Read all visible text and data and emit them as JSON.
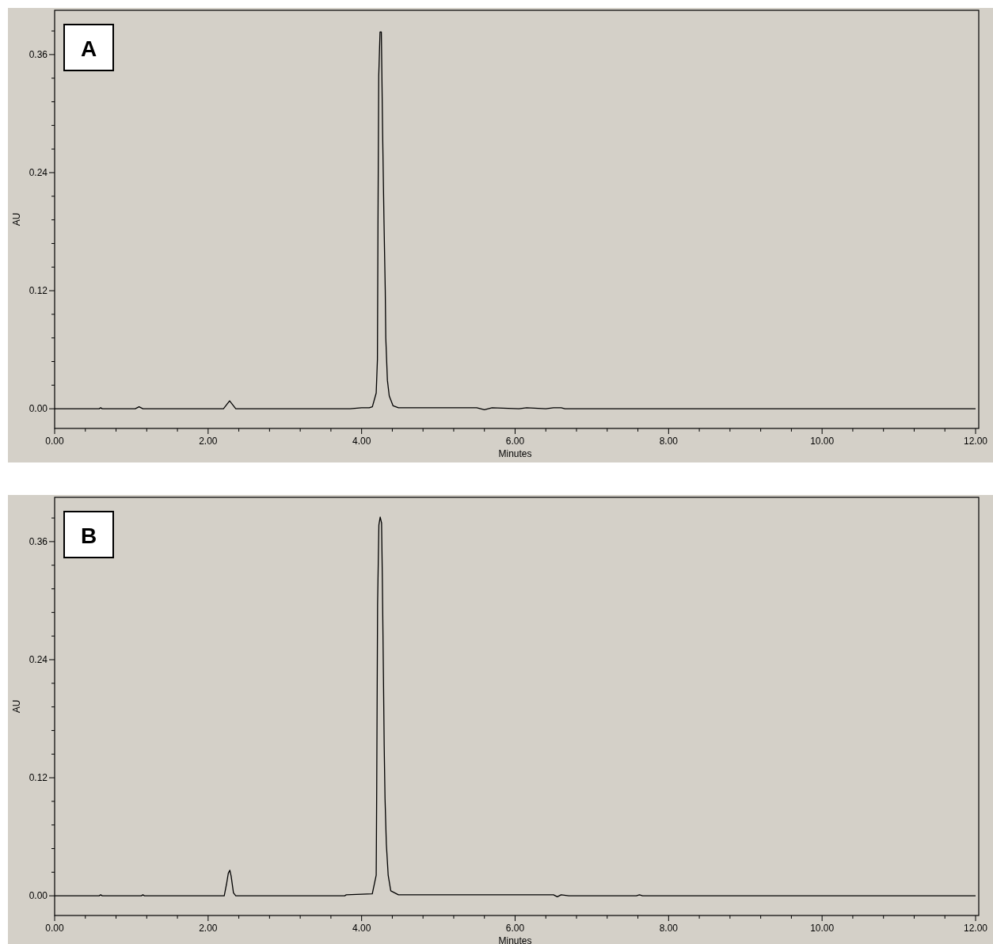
{
  "chart_data": [
    {
      "type": "line",
      "xlabel": "Minutes",
      "ylabel": "AU",
      "annotations": [
        "A"
      ],
      "xlim": [
        0,
        12
      ],
      "xticks": [
        {
          "value": 0,
          "label": "0.00"
        },
        {
          "value": 0.4,
          "label": null
        },
        {
          "value": 0.8,
          "label": null
        },
        {
          "value": 1.2,
          "label": null
        },
        {
          "value": 1.6,
          "label": null
        },
        {
          "value": 2,
          "label": "2.00"
        },
        {
          "value": 2.4,
          "label": null
        },
        {
          "value": 2.8,
          "label": null
        },
        {
          "value": 3.2,
          "label": null
        },
        {
          "value": 3.6,
          "label": null
        },
        {
          "value": 4,
          "label": "4.00"
        },
        {
          "value": 4.4,
          "label": null
        },
        {
          "value": 4.8,
          "label": null
        },
        {
          "value": 5.2,
          "label": null
        },
        {
          "value": 5.6,
          "label": null
        },
        {
          "value": 6,
          "label": "6.00"
        },
        {
          "value": 6.4,
          "label": null
        },
        {
          "value": 6.8,
          "label": null
        },
        {
          "value": 7.2,
          "label": null
        },
        {
          "value": 7.6,
          "label": null
        },
        {
          "value": 8,
          "label": "8.00"
        },
        {
          "value": 8.4,
          "label": null
        },
        {
          "value": 8.8,
          "label": null
        },
        {
          "value": 9.2,
          "label": null
        },
        {
          "value": 9.6,
          "label": null
        },
        {
          "value": 10,
          "label": "10.00"
        },
        {
          "value": 10.4,
          "label": null
        },
        {
          "value": 10.8,
          "label": null
        },
        {
          "value": 11.2,
          "label": null
        },
        {
          "value": 11.6,
          "label": null
        },
        {
          "value": 12,
          "label": "12.00"
        }
      ],
      "ylim": [
        -0.02,
        0.405
      ],
      "yticks": [
        {
          "value": 0,
          "label": "0.00"
        },
        {
          "value": 0.024,
          "label": null
        },
        {
          "value": 0.048,
          "label": null
        },
        {
          "value": 0.072,
          "label": null
        },
        {
          "value": 0.096,
          "label": null
        },
        {
          "value": 0.12,
          "label": "0.12"
        },
        {
          "value": 0.144,
          "label": null
        },
        {
          "value": 0.168,
          "label": null
        },
        {
          "value": 0.192,
          "label": null
        },
        {
          "value": 0.216,
          "label": null
        },
        {
          "value": 0.24,
          "label": "0.24"
        },
        {
          "value": 0.264,
          "label": null
        },
        {
          "value": 0.288,
          "label": null
        },
        {
          "value": 0.312,
          "label": null
        },
        {
          "value": 0.336,
          "label": null
        },
        {
          "value": 0.36,
          "label": "0.36"
        },
        {
          "value": 0.384,
          "label": null
        }
      ],
      "series": [
        {
          "color": "#000000",
          "x": [
            0,
            0.58,
            0.6,
            0.62,
            1.05,
            1.1,
            1.15,
            2.2,
            2.26,
            2.28,
            2.3,
            2.36,
            3.85,
            4.0,
            4.1,
            4.14,
            4.19,
            4.206,
            4.213,
            4.223,
            4.24,
            4.257,
            4.274,
            4.291,
            4.308,
            4.315,
            4.336,
            4.36,
            4.41,
            4.48,
            5.5,
            5.6,
            5.7,
            6.05,
            6.15,
            6.4,
            6.5,
            6.6,
            6.65,
            12
          ],
          "values": [
            0,
            0,
            0.001,
            0,
            0,
            0.002,
            0,
            0,
            0.006,
            0.008,
            0.006,
            0,
            0,
            0.001,
            0.001,
            0.002,
            0.016,
            0.05,
            0.185,
            0.338,
            0.383,
            0.383,
            0.279,
            0.193,
            0.12,
            0.072,
            0.029,
            0.013,
            0.003,
            0.001,
            0.001,
            -0.001,
            0.001,
            0,
            0.001,
            0,
            0.001,
            0.001,
            0,
            0
          ]
        }
      ]
    },
    {
      "type": "line",
      "xlabel": "Minutes",
      "ylabel": "AU",
      "annotations": [
        "B"
      ],
      "xlim": [
        0,
        12
      ],
      "xticks": [
        {
          "value": 0,
          "label": "0.00"
        },
        {
          "value": 0.4,
          "label": null
        },
        {
          "value": 0.8,
          "label": null
        },
        {
          "value": 1.2,
          "label": null
        },
        {
          "value": 1.6,
          "label": null
        },
        {
          "value": 2,
          "label": "2.00"
        },
        {
          "value": 2.4,
          "label": null
        },
        {
          "value": 2.8,
          "label": null
        },
        {
          "value": 3.2,
          "label": null
        },
        {
          "value": 3.6,
          "label": null
        },
        {
          "value": 4,
          "label": "4.00"
        },
        {
          "value": 4.4,
          "label": null
        },
        {
          "value": 4.8,
          "label": null
        },
        {
          "value": 5.2,
          "label": null
        },
        {
          "value": 5.6,
          "label": null
        },
        {
          "value": 6,
          "label": "6.00"
        },
        {
          "value": 6.4,
          "label": null
        },
        {
          "value": 6.8,
          "label": null
        },
        {
          "value": 7.2,
          "label": null
        },
        {
          "value": 7.6,
          "label": null
        },
        {
          "value": 8,
          "label": "8.00"
        },
        {
          "value": 8.4,
          "label": null
        },
        {
          "value": 8.8,
          "label": null
        },
        {
          "value": 9.2,
          "label": null
        },
        {
          "value": 9.6,
          "label": null
        },
        {
          "value": 10,
          "label": "10.00"
        },
        {
          "value": 10.4,
          "label": null
        },
        {
          "value": 10.8,
          "label": null
        },
        {
          "value": 11.2,
          "label": null
        },
        {
          "value": 11.6,
          "label": null
        },
        {
          "value": 12,
          "label": "12.00"
        }
      ],
      "ylim": [
        -0.02,
        0.405
      ],
      "yticks": [
        {
          "value": 0,
          "label": "0.00"
        },
        {
          "value": 0.024,
          "label": null
        },
        {
          "value": 0.048,
          "label": null
        },
        {
          "value": 0.072,
          "label": null
        },
        {
          "value": 0.096,
          "label": null
        },
        {
          "value": 0.12,
          "label": "0.12"
        },
        {
          "value": 0.144,
          "label": null
        },
        {
          "value": 0.168,
          "label": null
        },
        {
          "value": 0.192,
          "label": null
        },
        {
          "value": 0.216,
          "label": null
        },
        {
          "value": 0.24,
          "label": "0.24"
        },
        {
          "value": 0.264,
          "label": null
        },
        {
          "value": 0.288,
          "label": null
        },
        {
          "value": 0.312,
          "label": null
        },
        {
          "value": 0.336,
          "label": null
        },
        {
          "value": 0.36,
          "label": "0.36"
        },
        {
          "value": 0.384,
          "label": null
        }
      ],
      "series": [
        {
          "color": "#000000",
          "x": [
            0,
            0.58,
            0.6,
            0.62,
            1.13,
            1.15,
            1.17,
            2.21,
            2.24,
            2.263,
            2.283,
            2.3,
            2.33,
            2.36,
            3.78,
            3.8,
            4.139,
            4.19,
            4.197,
            4.208,
            4.225,
            4.242,
            4.26,
            4.27,
            4.284,
            4.294,
            4.305,
            4.322,
            4.346,
            4.38,
            4.48,
            6.5,
            6.55,
            6.6,
            6.7,
            7.58,
            7.62,
            7.66,
            12
          ],
          "values": [
            0,
            0,
            0.001,
            0,
            0,
            0.001,
            0,
            0,
            0.012,
            0.023,
            0.026,
            0.02,
            0.003,
            0,
            0,
            0.001,
            0.002,
            0.021,
            0.112,
            0.296,
            0.377,
            0.385,
            0.379,
            0.323,
            0.226,
            0.153,
            0.099,
            0.053,
            0.021,
            0.005,
            0.001,
            0.001,
            -0.001,
            0.001,
            0,
            0,
            0.001,
            0,
            0
          ]
        }
      ]
    }
  ]
}
